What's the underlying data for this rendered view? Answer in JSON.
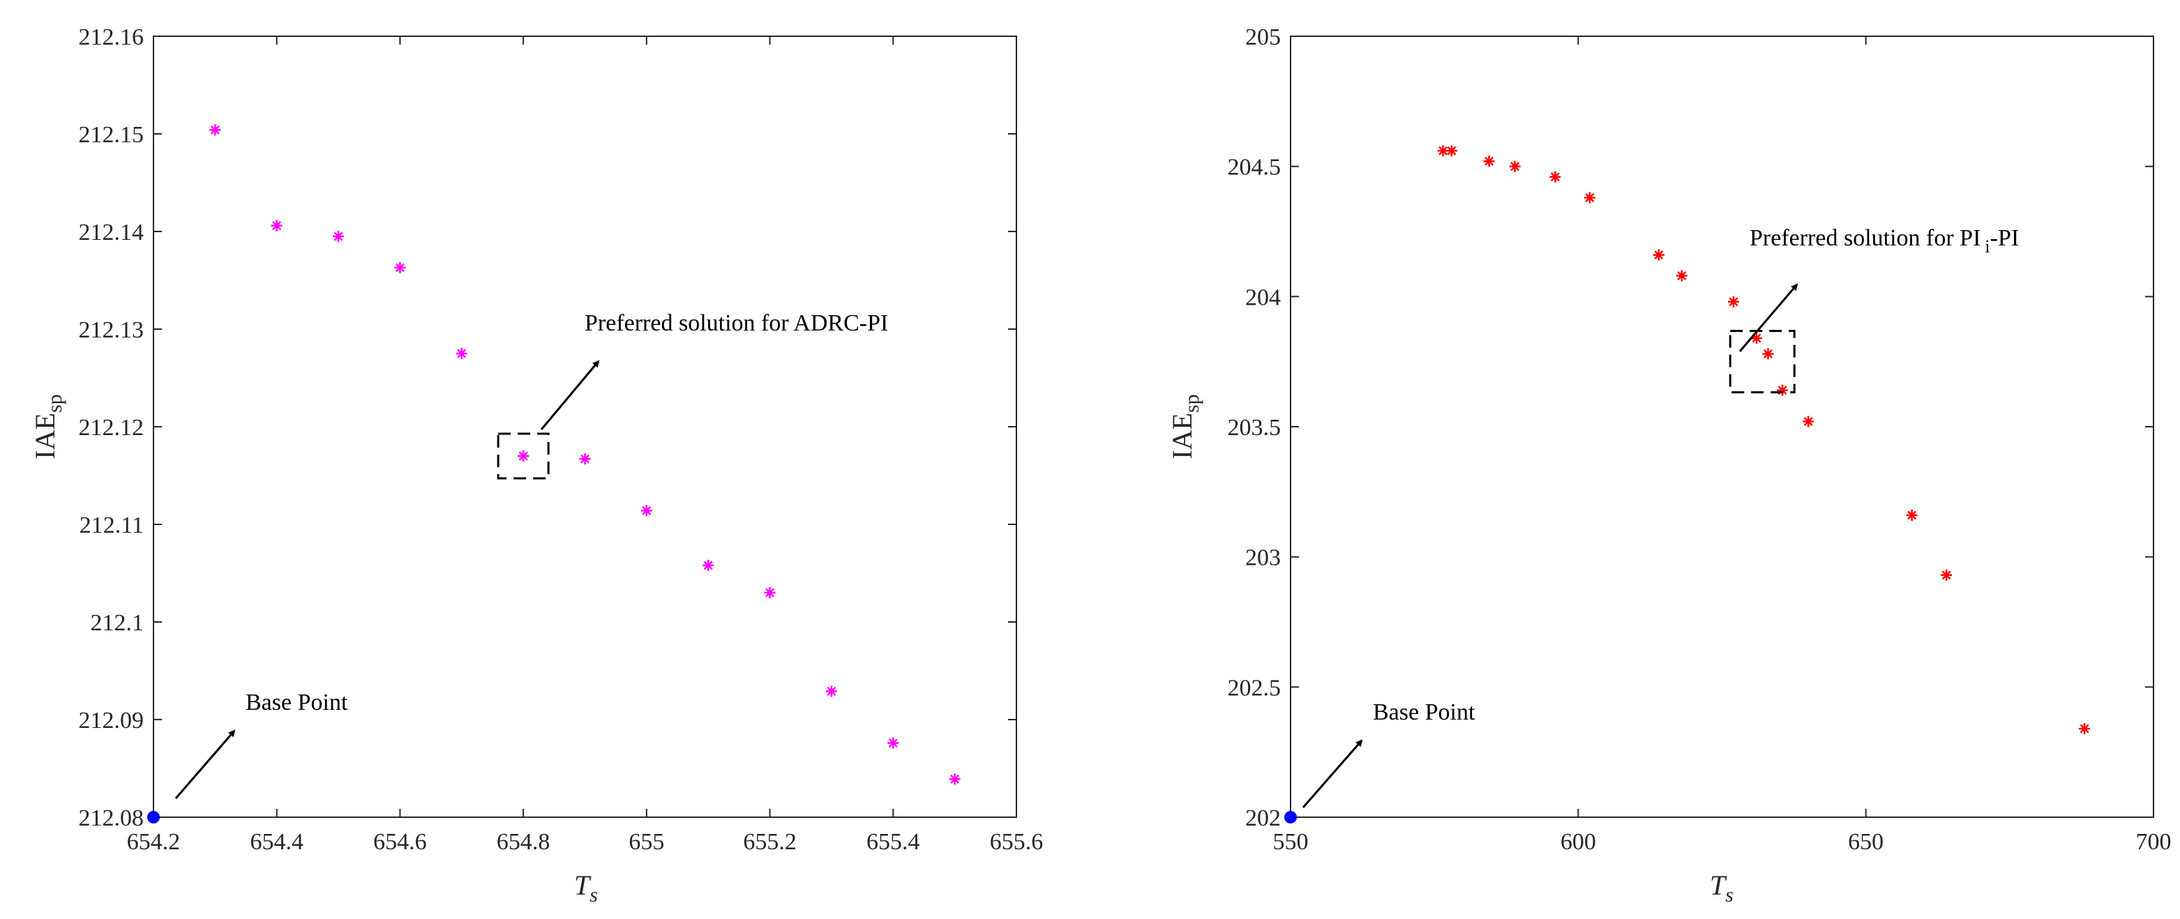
{
  "chart_data": [
    {
      "type": "scatter",
      "xlabel": "T",
      "xlabel_sub": "s",
      "ylabel": "IAE",
      "ylabel_sub": "sp",
      "xlim": [
        654.2,
        655.6
      ],
      "ylim": [
        212.08,
        212.16
      ],
      "xticks": [
        "654.2",
        "654.4",
        "654.6",
        "654.8",
        "655",
        "655.2",
        "655.4",
        "655.6"
      ],
      "yticks": [
        "212.08",
        "212.09",
        "212.1",
        "212.11",
        "212.12",
        "212.13",
        "212.14",
        "212.15",
        "212.16"
      ],
      "grid": false,
      "series": [
        {
          "marker": "asterisk",
          "color": "#ff00ff",
          "x": [
            654.3,
            654.4,
            654.5,
            654.6,
            654.7,
            654.8,
            654.9,
            655.0,
            655.1,
            655.2,
            655.3,
            655.4,
            655.5
          ],
          "y": [
            212.1504,
            212.1406,
            212.1395,
            212.1363,
            212.1275,
            212.117,
            212.1167,
            212.1114,
            212.1058,
            212.103,
            212.0929,
            212.0876,
            212.0839
          ]
        }
      ],
      "base_point": {
        "x": 654.2,
        "y": 212.08,
        "color": "#0000ff"
      },
      "preferred_box": {
        "x": 654.8,
        "y": 212.117
      },
      "annotations": {
        "base_point": "Base Point",
        "preferred": "Preferred solution for ADRC-PI"
      }
    },
    {
      "type": "scatter",
      "xlabel": "T",
      "xlabel_sub": "s",
      "ylabel": "IAE",
      "ylabel_sub": "sp",
      "xlim": [
        550,
        700
      ],
      "ylim": [
        202,
        205
      ],
      "xticks": [
        "550",
        "600",
        "650",
        "700"
      ],
      "yticks": [
        "202",
        "202.5",
        "203",
        "203.5",
        "204",
        "204.5",
        "205"
      ],
      "grid": false,
      "series": [
        {
          "marker": "asterisk",
          "color": "#ff0000",
          "x": [
            576.5,
            578,
            584.5,
            589,
            596,
            602,
            614,
            618,
            627,
            631,
            633,
            635.5,
            640,
            658,
            664,
            688
          ],
          "y": [
            204.56,
            204.56,
            204.52,
            204.5,
            204.46,
            204.38,
            204.16,
            204.08,
            203.98,
            203.84,
            203.78,
            203.64,
            203.52,
            203.16,
            202.93,
            202.34
          ]
        }
      ],
      "base_point": {
        "x": 550,
        "y": 202,
        "color": "#0000ff"
      },
      "preferred_box": {
        "x": 632,
        "y": 203.75
      },
      "annotations": {
        "base_point": "Base Point",
        "preferred_main": "Preferred solution for PI",
        "preferred_sub": "i",
        "preferred_tail": "-PI"
      }
    }
  ]
}
